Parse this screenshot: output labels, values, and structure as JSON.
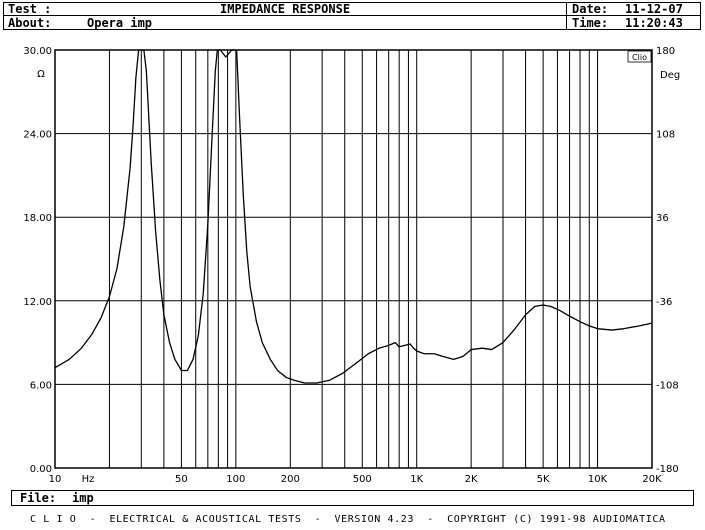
{
  "header": {
    "test_label": "Test :",
    "title": "IMPEDANCE RESPONSE",
    "about_label": "About:",
    "about_value": "Opera imp",
    "date_label": "Date:",
    "date_value": "11-12-07",
    "time_label": "Time:",
    "time_value": "11:20:43"
  },
  "file": {
    "label": "File:",
    "value": "imp"
  },
  "footer": {
    "text": "C L I O  -  ELECTRICAL & ACOUSTICAL TESTS  -  VERSION 4.23  -  COPYRIGHT (C) 1991-98 AUDIOMATICA"
  },
  "badge": "Clio",
  "chart_data": {
    "type": "line",
    "title": "IMPEDANCE RESPONSE",
    "x_scale": "log",
    "xlim": [
      10,
      20000
    ],
    "ylim": [
      0,
      30
    ],
    "y2lim": [
      -180,
      180
    ],
    "xlabel": "Hz",
    "ylabel": "Ω",
    "y2label": "Deg",
    "grid": true,
    "x_ticks": [
      {
        "value": 10,
        "label": "10"
      },
      {
        "value": 50,
        "label": "50"
      },
      {
        "value": 100,
        "label": "100"
      },
      {
        "value": 200,
        "label": "200"
      },
      {
        "value": 500,
        "label": "500"
      },
      {
        "value": 1000,
        "label": "1K"
      },
      {
        "value": 2000,
        "label": "2K"
      },
      {
        "value": 5000,
        "label": "5K"
      },
      {
        "value": 10000,
        "label": "10K"
      },
      {
        "value": 20000,
        "label": "20K"
      }
    ],
    "y_ticks": [
      {
        "value": 0,
        "label": "0.00"
      },
      {
        "value": 6,
        "label": "6.00"
      },
      {
        "value": 12,
        "label": "12.00"
      },
      {
        "value": 18,
        "label": "18.00"
      },
      {
        "value": 24,
        "label": "24.00"
      },
      {
        "value": 30,
        "label": "30.00"
      }
    ],
    "y2_ticks": [
      {
        "value": -180,
        "label": "-180"
      },
      {
        "value": -108,
        "label": "-108"
      },
      {
        "value": -36,
        "label": "-36"
      },
      {
        "value": 36,
        "label": "36"
      },
      {
        "value": 108,
        "label": "108"
      },
      {
        "value": 180,
        "label": "180"
      }
    ],
    "series": [
      {
        "color": "#000000",
        "points": [
          [
            10,
            7.2
          ],
          [
            12,
            7.8
          ],
          [
            14,
            8.6
          ],
          [
            16,
            9.6
          ],
          [
            18,
            10.8
          ],
          [
            20,
            12.3
          ],
          [
            22,
            14.3
          ],
          [
            24,
            17.3
          ],
          [
            26,
            21.5
          ],
          [
            27,
            24.5
          ],
          [
            28,
            28.0
          ],
          [
            29,
            30.0
          ],
          [
            31,
            30.0
          ],
          [
            32,
            28.5
          ],
          [
            34,
            22.0
          ],
          [
            36,
            17.0
          ],
          [
            38,
            13.5
          ],
          [
            40,
            11.0
          ],
          [
            43,
            9.0
          ],
          [
            46,
            7.8
          ],
          [
            50,
            7.0
          ],
          [
            54,
            7.0
          ],
          [
            58,
            7.8
          ],
          [
            62,
            9.5
          ],
          [
            66,
            12.5
          ],
          [
            70,
            17.5
          ],
          [
            74,
            24.0
          ],
          [
            77,
            28.5
          ],
          [
            79,
            30.0
          ],
          [
            82,
            30.0
          ],
          [
            88,
            29.5
          ],
          [
            95,
            30.0
          ],
          [
            101,
            30.0
          ],
          [
            105,
            25.0
          ],
          [
            110,
            19.5
          ],
          [
            115,
            15.5
          ],
          [
            120,
            13.0
          ],
          [
            130,
            10.5
          ],
          [
            140,
            9.0
          ],
          [
            155,
            7.8
          ],
          [
            170,
            7.0
          ],
          [
            190,
            6.5
          ],
          [
            210,
            6.3
          ],
          [
            240,
            6.1
          ],
          [
            280,
            6.1
          ],
          [
            330,
            6.3
          ],
          [
            390,
            6.8
          ],
          [
            460,
            7.5
          ],
          [
            540,
            8.2
          ],
          [
            620,
            8.6
          ],
          [
            700,
            8.8
          ],
          [
            760,
            9.0
          ],
          [
            800,
            8.7
          ],
          [
            860,
            8.8
          ],
          [
            920,
            8.9
          ],
          [
            960,
            8.6
          ],
          [
            1000,
            8.4
          ],
          [
            1100,
            8.2
          ],
          [
            1250,
            8.2
          ],
          [
            1400,
            8.0
          ],
          [
            1600,
            7.8
          ],
          [
            1800,
            8.0
          ],
          [
            2000,
            8.5
          ],
          [
            2300,
            8.6
          ],
          [
            2600,
            8.5
          ],
          [
            3000,
            9.0
          ],
          [
            3500,
            10.0
          ],
          [
            4000,
            11.0
          ],
          [
            4500,
            11.6
          ],
          [
            5000,
            11.7
          ],
          [
            5500,
            11.6
          ],
          [
            6200,
            11.3
          ],
          [
            7000,
            10.9
          ],
          [
            8000,
            10.5
          ],
          [
            9000,
            10.2
          ],
          [
            10000,
            10.0
          ],
          [
            12000,
            9.9
          ],
          [
            14000,
            10.0
          ],
          [
            17000,
            10.2
          ],
          [
            20000,
            10.4
          ]
        ]
      }
    ]
  }
}
